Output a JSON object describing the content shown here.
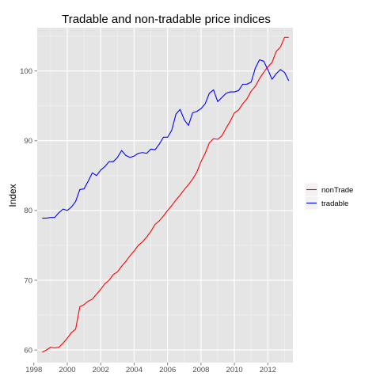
{
  "chart_data": {
    "type": "line",
    "title": "Tradable and non-tradable price indices",
    "xlabel": "",
    "ylabel": "Index",
    "xlim": [
      1998.2,
      2013.5
    ],
    "ylim": [
      58.2,
      106.2
    ],
    "x_ticks": [
      1998,
      2000,
      2002,
      2004,
      2006,
      2008,
      2010,
      2012
    ],
    "x_tick_labels": [
      "1998",
      "2000",
      "2002",
      "2004",
      "2006",
      "2008",
      "2010",
      "2012"
    ],
    "y_ticks": [
      60,
      70,
      80,
      90,
      100
    ],
    "y_tick_labels": [
      "60",
      "70",
      "80",
      "90",
      "100"
    ],
    "grid": true,
    "background": "#e5e5e5",
    "legend": {
      "position": "right",
      "entries": [
        "nonTrade",
        "tradable"
      ]
    },
    "series": [
      {
        "name": "nonTrade",
        "color": "#ff0000",
        "x": [
          1998.5,
          1998.75,
          1999.0,
          1999.25,
          1999.5,
          1999.75,
          2000.0,
          2000.25,
          2000.5,
          2000.75,
          2001.0,
          2001.25,
          2001.5,
          2001.75,
          2002.0,
          2002.25,
          2002.5,
          2002.75,
          2003.0,
          2003.25,
          2003.5,
          2003.75,
          2004.0,
          2004.25,
          2004.5,
          2004.75,
          2005.0,
          2005.25,
          2005.5,
          2005.75,
          2006.0,
          2006.25,
          2006.5,
          2006.75,
          2007.0,
          2007.25,
          2007.5,
          2007.75,
          2008.0,
          2008.25,
          2008.5,
          2008.75,
          2009.0,
          2009.25,
          2009.5,
          2009.75,
          2010.0,
          2010.25,
          2010.5,
          2010.75,
          2011.0,
          2011.25,
          2011.5,
          2011.75,
          2012.0,
          2012.25,
          2012.5,
          2012.75,
          2013.0,
          2013.25
        ],
        "values": [
          59.7,
          60.0,
          60.4,
          60.3,
          60.4,
          61.0,
          61.7,
          62.5,
          63.0,
          66.2,
          66.5,
          67.0,
          67.3,
          68.0,
          68.7,
          69.5,
          70.0,
          70.8,
          71.2,
          72.0,
          72.7,
          73.5,
          74.2,
          75.0,
          75.5,
          76.2,
          77.0,
          78.0,
          78.5,
          79.2,
          80.0,
          80.7,
          81.5,
          82.2,
          83.0,
          83.7,
          84.5,
          85.5,
          87.0,
          88.2,
          89.7,
          90.3,
          90.2,
          90.7,
          91.8,
          92.8,
          94.0,
          94.4,
          95.3,
          96.0,
          97.1,
          97.8,
          98.9,
          99.8,
          100.6,
          101.2,
          102.8,
          103.4,
          104.8,
          104.8
        ]
      },
      {
        "name": "tradable",
        "color": "#0000ff",
        "x": [
          1998.5,
          1998.75,
          1999.0,
          1999.25,
          1999.5,
          1999.75,
          2000.0,
          2000.25,
          2000.5,
          2000.75,
          2001.0,
          2001.25,
          2001.5,
          2001.75,
          2002.0,
          2002.25,
          2002.5,
          2002.75,
          2003.0,
          2003.25,
          2003.5,
          2003.75,
          2004.0,
          2004.25,
          2004.5,
          2004.75,
          2005.0,
          2005.25,
          2005.5,
          2005.75,
          2006.0,
          2006.25,
          2006.5,
          2006.75,
          2007.0,
          2007.25,
          2007.5,
          2007.75,
          2008.0,
          2008.25,
          2008.5,
          2008.75,
          2009.0,
          2009.25,
          2009.5,
          2009.75,
          2010.0,
          2010.25,
          2010.5,
          2010.75,
          2011.0,
          2011.25,
          2011.5,
          2011.75,
          2012.0,
          2012.25,
          2012.5,
          2012.75,
          2013.0,
          2013.25
        ],
        "values": [
          78.9,
          78.9,
          79.0,
          79.0,
          79.7,
          80.2,
          80.0,
          80.5,
          81.3,
          83.0,
          83.1,
          84.2,
          85.4,
          85.0,
          85.8,
          86.3,
          87.0,
          87.0,
          87.6,
          88.6,
          87.9,
          87.6,
          87.8,
          88.2,
          88.3,
          88.2,
          88.8,
          88.7,
          89.5,
          90.5,
          90.5,
          91.5,
          93.8,
          94.5,
          93.0,
          92.2,
          94.0,
          94.2,
          94.6,
          95.3,
          96.8,
          97.3,
          95.6,
          96.2,
          96.8,
          97.0,
          97.0,
          97.2,
          98.1,
          98.1,
          98.4,
          100.4,
          101.6,
          101.4,
          100.2,
          98.8,
          99.6,
          100.2,
          99.8,
          98.6
        ]
      }
    ]
  }
}
